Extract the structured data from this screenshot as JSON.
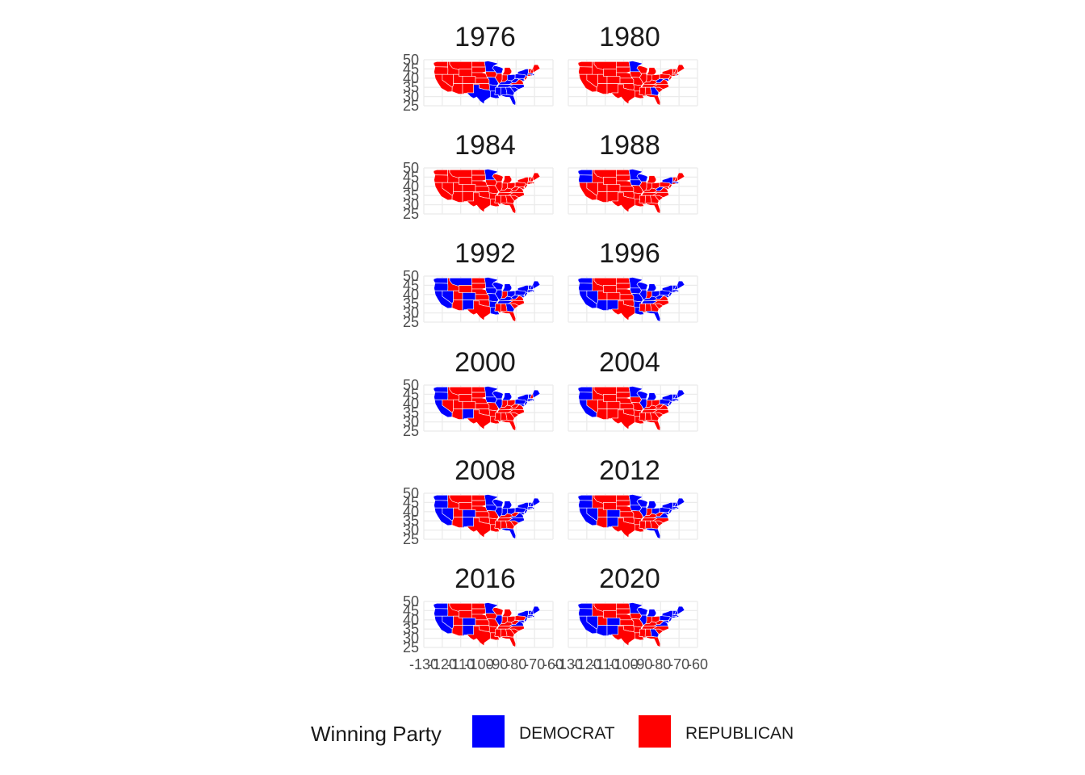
{
  "chart_data": {
    "type": "choropleth-map-facets",
    "facet_titles": [
      "1976",
      "1980",
      "1984",
      "1988",
      "1992",
      "1996",
      "2000",
      "2004",
      "2008",
      "2012",
      "2016",
      "2020"
    ],
    "xlim": [
      -130,
      -60
    ],
    "ylim": [
      25,
      50
    ],
    "x_tick_labels": [
      "-130",
      "-120",
      "-110",
      "-100",
      "-90",
      "-80",
      "-70",
      "-60"
    ],
    "y_tick_labels": [
      "25",
      "30",
      "35",
      "40",
      "45",
      "50"
    ],
    "grid": true,
    "legend": {
      "title": "Winning Party",
      "position": "bottom",
      "entries": [
        {
          "label": "DEMOCRAT",
          "color": "#0000ff"
        },
        {
          "label": "REPUBLICAN",
          "color": "#ff0000"
        }
      ]
    },
    "colors": {
      "DEMOCRAT": "#0000ff",
      "REPUBLICAN": "#ff0000",
      "grid": "#ebebeb",
      "axis_text": "#4d4d4d",
      "title_text": "#1a1a1a"
    },
    "state_winners": {
      "1976": {
        "WA": "R",
        "OR": "R",
        "CA": "R",
        "NV": "R",
        "ID": "R",
        "MT": "R",
        "WY": "R",
        "UT": "R",
        "AZ": "R",
        "CO": "R",
        "NM": "R",
        "ND": "R",
        "SD": "R",
        "NE": "R",
        "KS": "R",
        "OK": "R",
        "TX": "D",
        "MN": "D",
        "IA": "R",
        "MO": "D",
        "AR": "D",
        "LA": "D",
        "WI": "D",
        "IL": "R",
        "MI": "R",
        "IN": "R",
        "OH": "D",
        "KY": "D",
        "TN": "D",
        "MS": "D",
        "AL": "D",
        "GA": "D",
        "FL": "D",
        "SC": "D",
        "NC": "D",
        "VA": "R",
        "WV": "D",
        "PA": "D",
        "NY": "D",
        "NJ": "R",
        "DE": "D",
        "MD": "D",
        "CT": "R",
        "RI": "D",
        "MA": "D",
        "VT": "R",
        "NH": "R",
        "ME": "R"
      },
      "1980": {
        "WA": "R",
        "OR": "R",
        "CA": "R",
        "NV": "R",
        "ID": "R",
        "MT": "R",
        "WY": "R",
        "UT": "R",
        "AZ": "R",
        "CO": "R",
        "NM": "R",
        "ND": "R",
        "SD": "R",
        "NE": "R",
        "KS": "R",
        "OK": "R",
        "TX": "R",
        "MN": "D",
        "IA": "R",
        "MO": "R",
        "AR": "R",
        "LA": "R",
        "WI": "R",
        "IL": "R",
        "MI": "R",
        "IN": "R",
        "OH": "R",
        "KY": "R",
        "TN": "R",
        "MS": "R",
        "AL": "R",
        "GA": "D",
        "FL": "R",
        "SC": "R",
        "NC": "R",
        "VA": "R",
        "WV": "D",
        "PA": "R",
        "NY": "R",
        "NJ": "R",
        "DE": "R",
        "MD": "D",
        "CT": "R",
        "RI": "D",
        "MA": "R",
        "VT": "R",
        "NH": "R",
        "ME": "R"
      },
      "1984": {
        "WA": "R",
        "OR": "R",
        "CA": "R",
        "NV": "R",
        "ID": "R",
        "MT": "R",
        "WY": "R",
        "UT": "R",
        "AZ": "R",
        "CO": "R",
        "NM": "R",
        "ND": "R",
        "SD": "R",
        "NE": "R",
        "KS": "R",
        "OK": "R",
        "TX": "R",
        "MN": "D",
        "IA": "R",
        "MO": "R",
        "AR": "R",
        "LA": "R",
        "WI": "R",
        "IL": "R",
        "MI": "R",
        "IN": "R",
        "OH": "R",
        "KY": "R",
        "TN": "R",
        "MS": "R",
        "AL": "R",
        "GA": "R",
        "FL": "R",
        "SC": "R",
        "NC": "R",
        "VA": "R",
        "WV": "R",
        "PA": "R",
        "NY": "R",
        "NJ": "R",
        "DE": "R",
        "MD": "R",
        "CT": "R",
        "RI": "R",
        "MA": "R",
        "VT": "R",
        "NH": "R",
        "ME": "R"
      },
      "1988": {
        "WA": "D",
        "OR": "D",
        "CA": "R",
        "NV": "R",
        "ID": "R",
        "MT": "R",
        "WY": "R",
        "UT": "R",
        "AZ": "R",
        "CO": "R",
        "NM": "R",
        "ND": "R",
        "SD": "R",
        "NE": "R",
        "KS": "R",
        "OK": "R",
        "TX": "R",
        "MN": "D",
        "IA": "D",
        "MO": "R",
        "AR": "R",
        "LA": "R",
        "WI": "D",
        "IL": "R",
        "MI": "R",
        "IN": "R",
        "OH": "R",
        "KY": "R",
        "TN": "R",
        "MS": "R",
        "AL": "R",
        "GA": "R",
        "FL": "R",
        "SC": "R",
        "NC": "R",
        "VA": "R",
        "WV": "D",
        "PA": "R",
        "NY": "D",
        "NJ": "R",
        "DE": "R",
        "MD": "R",
        "CT": "R",
        "RI": "D",
        "MA": "D",
        "VT": "R",
        "NH": "R",
        "ME": "R"
      },
      "1992": {
        "WA": "D",
        "OR": "D",
        "CA": "D",
        "NV": "D",
        "ID": "R",
        "MT": "D",
        "WY": "R",
        "UT": "R",
        "AZ": "R",
        "CO": "D",
        "NM": "D",
        "ND": "R",
        "SD": "R",
        "NE": "R",
        "KS": "R",
        "OK": "R",
        "TX": "R",
        "MN": "D",
        "IA": "D",
        "MO": "D",
        "AR": "D",
        "LA": "D",
        "WI": "D",
        "IL": "D",
        "MI": "D",
        "IN": "R",
        "OH": "D",
        "KY": "D",
        "TN": "D",
        "MS": "R",
        "AL": "R",
        "GA": "D",
        "FL": "R",
        "SC": "R",
        "NC": "R",
        "VA": "R",
        "WV": "D",
        "PA": "D",
        "NY": "D",
        "NJ": "D",
        "DE": "D",
        "MD": "D",
        "CT": "D",
        "RI": "D",
        "MA": "D",
        "VT": "D",
        "NH": "D",
        "ME": "D"
      },
      "1996": {
        "WA": "D",
        "OR": "D",
        "CA": "D",
        "NV": "D",
        "ID": "R",
        "MT": "R",
        "WY": "R",
        "UT": "R",
        "AZ": "D",
        "CO": "R",
        "NM": "D",
        "ND": "R",
        "SD": "R",
        "NE": "R",
        "KS": "R",
        "OK": "R",
        "TX": "R",
        "MN": "D",
        "IA": "D",
        "MO": "D",
        "AR": "D",
        "LA": "D",
        "WI": "D",
        "IL": "D",
        "MI": "D",
        "IN": "R",
        "OH": "D",
        "KY": "D",
        "TN": "D",
        "MS": "R",
        "AL": "R",
        "GA": "R",
        "FL": "D",
        "SC": "R",
        "NC": "R",
        "VA": "R",
        "WV": "D",
        "PA": "D",
        "NY": "D",
        "NJ": "D",
        "DE": "D",
        "MD": "D",
        "CT": "D",
        "RI": "D",
        "MA": "D",
        "VT": "D",
        "NH": "D",
        "ME": "D"
      },
      "2000": {
        "WA": "D",
        "OR": "D",
        "CA": "D",
        "NV": "R",
        "ID": "R",
        "MT": "R",
        "WY": "R",
        "UT": "R",
        "AZ": "R",
        "CO": "R",
        "NM": "D",
        "ND": "R",
        "SD": "R",
        "NE": "R",
        "KS": "R",
        "OK": "R",
        "TX": "R",
        "MN": "D",
        "IA": "D",
        "MO": "R",
        "AR": "R",
        "LA": "R",
        "WI": "D",
        "IL": "D",
        "MI": "D",
        "IN": "R",
        "OH": "R",
        "KY": "R",
        "TN": "R",
        "MS": "R",
        "AL": "R",
        "GA": "R",
        "FL": "R",
        "SC": "R",
        "NC": "R",
        "VA": "R",
        "WV": "R",
        "PA": "D",
        "NY": "D",
        "NJ": "D",
        "DE": "D",
        "MD": "D",
        "CT": "D",
        "RI": "D",
        "MA": "D",
        "VT": "D",
        "NH": "R",
        "ME": "D"
      },
      "2004": {
        "WA": "D",
        "OR": "D",
        "CA": "D",
        "NV": "R",
        "ID": "R",
        "MT": "R",
        "WY": "R",
        "UT": "R",
        "AZ": "R",
        "CO": "R",
        "NM": "R",
        "ND": "R",
        "SD": "R",
        "NE": "R",
        "KS": "R",
        "OK": "R",
        "TX": "R",
        "MN": "D",
        "IA": "R",
        "MO": "R",
        "AR": "R",
        "LA": "R",
        "WI": "D",
        "IL": "D",
        "MI": "D",
        "IN": "R",
        "OH": "R",
        "KY": "R",
        "TN": "R",
        "MS": "R",
        "AL": "R",
        "GA": "R",
        "FL": "R",
        "SC": "R",
        "NC": "R",
        "VA": "R",
        "WV": "R",
        "PA": "D",
        "NY": "D",
        "NJ": "D",
        "DE": "D",
        "MD": "D",
        "CT": "D",
        "RI": "D",
        "MA": "D",
        "VT": "D",
        "NH": "D",
        "ME": "D"
      },
      "2008": {
        "WA": "D",
        "OR": "D",
        "CA": "D",
        "NV": "D",
        "ID": "R",
        "MT": "R",
        "WY": "R",
        "UT": "R",
        "AZ": "R",
        "CO": "D",
        "NM": "D",
        "ND": "R",
        "SD": "R",
        "NE": "R",
        "KS": "R",
        "OK": "R",
        "TX": "R",
        "MN": "D",
        "IA": "D",
        "MO": "R",
        "AR": "R",
        "LA": "R",
        "WI": "D",
        "IL": "D",
        "MI": "D",
        "IN": "D",
        "OH": "D",
        "KY": "R",
        "TN": "R",
        "MS": "R",
        "AL": "R",
        "GA": "R",
        "FL": "D",
        "SC": "R",
        "NC": "D",
        "VA": "D",
        "WV": "R",
        "PA": "D",
        "NY": "D",
        "NJ": "D",
        "DE": "D",
        "MD": "D",
        "CT": "D",
        "RI": "D",
        "MA": "D",
        "VT": "D",
        "NH": "D",
        "ME": "D"
      },
      "2012": {
        "WA": "D",
        "OR": "D",
        "CA": "D",
        "NV": "D",
        "ID": "R",
        "MT": "R",
        "WY": "R",
        "UT": "R",
        "AZ": "R",
        "CO": "D",
        "NM": "D",
        "ND": "R",
        "SD": "R",
        "NE": "R",
        "KS": "R",
        "OK": "R",
        "TX": "R",
        "MN": "D",
        "IA": "D",
        "MO": "R",
        "AR": "R",
        "LA": "R",
        "WI": "D",
        "IL": "D",
        "MI": "D",
        "IN": "R",
        "OH": "D",
        "KY": "R",
        "TN": "R",
        "MS": "R",
        "AL": "R",
        "GA": "R",
        "FL": "D",
        "SC": "R",
        "NC": "R",
        "VA": "D",
        "WV": "R",
        "PA": "D",
        "NY": "D",
        "NJ": "D",
        "DE": "D",
        "MD": "D",
        "CT": "D",
        "RI": "D",
        "MA": "D",
        "VT": "D",
        "NH": "D",
        "ME": "D"
      },
      "2016": {
        "WA": "D",
        "OR": "D",
        "CA": "D",
        "NV": "D",
        "ID": "R",
        "MT": "R",
        "WY": "R",
        "UT": "R",
        "AZ": "R",
        "CO": "D",
        "NM": "D",
        "ND": "R",
        "SD": "R",
        "NE": "R",
        "KS": "R",
        "OK": "R",
        "TX": "R",
        "MN": "D",
        "IA": "R",
        "MO": "R",
        "AR": "R",
        "LA": "R",
        "WI": "R",
        "IL": "D",
        "MI": "R",
        "IN": "R",
        "OH": "R",
        "KY": "R",
        "TN": "R",
        "MS": "R",
        "AL": "R",
        "GA": "R",
        "FL": "R",
        "SC": "R",
        "NC": "R",
        "VA": "D",
        "WV": "R",
        "PA": "R",
        "NY": "D",
        "NJ": "D",
        "DE": "D",
        "MD": "D",
        "CT": "D",
        "RI": "D",
        "MA": "D",
        "VT": "D",
        "NH": "D",
        "ME": "D"
      },
      "2020": {
        "WA": "D",
        "OR": "D",
        "CA": "D",
        "NV": "D",
        "ID": "R",
        "MT": "R",
        "WY": "R",
        "UT": "R",
        "AZ": "D",
        "CO": "D",
        "NM": "D",
        "ND": "R",
        "SD": "R",
        "NE": "R",
        "KS": "R",
        "OK": "R",
        "TX": "R",
        "MN": "D",
        "IA": "R",
        "MO": "R",
        "AR": "R",
        "LA": "R",
        "WI": "D",
        "IL": "D",
        "MI": "D",
        "IN": "R",
        "OH": "R",
        "KY": "R",
        "TN": "R",
        "MS": "R",
        "AL": "R",
        "GA": "D",
        "FL": "R",
        "SC": "R",
        "NC": "R",
        "VA": "D",
        "WV": "R",
        "PA": "D",
        "NY": "D",
        "NJ": "D",
        "DE": "D",
        "MD": "D",
        "CT": "D",
        "RI": "D",
        "MA": "D",
        "VT": "D",
        "NH": "D",
        "ME": "D"
      }
    }
  }
}
